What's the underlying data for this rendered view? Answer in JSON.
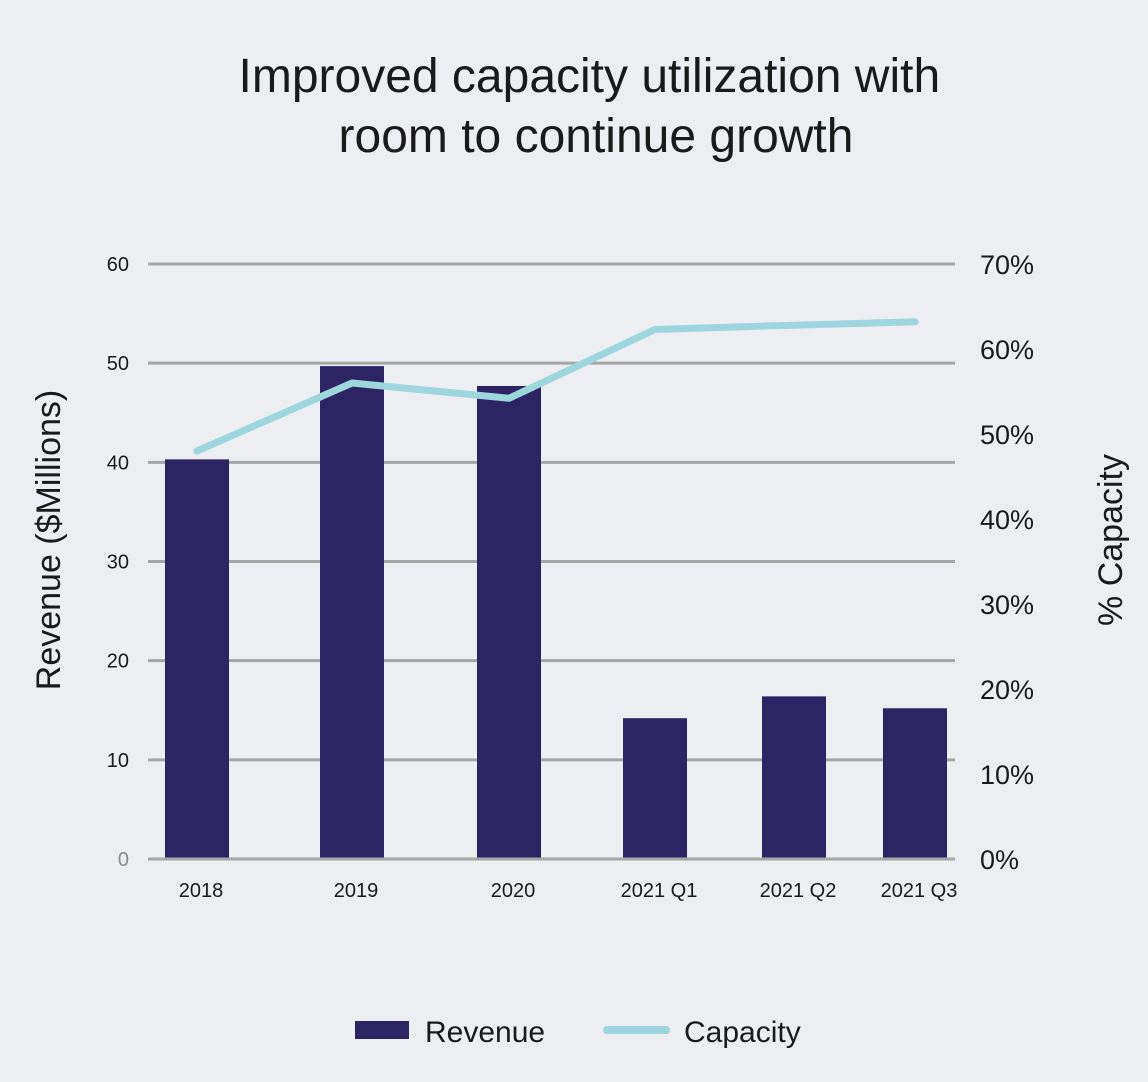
{
  "colors": {
    "background": "#ECEEF2",
    "revenue_bar": "#2D2563",
    "capacity_line": "#9DD6DD",
    "gridline": "#A6A6A6",
    "text": "#1A1A1A"
  },
  "chart_data": {
    "type": "bar",
    "title_lines": [
      "Improved capacity utilization with",
      "room to continue growth"
    ],
    "categories": [
      "2018",
      "2019",
      "2020",
      "2021 Q1",
      "2021 Q2",
      "2021 Q3"
    ],
    "series": [
      {
        "name": "Revenue",
        "type": "bar",
        "axis": "left",
        "values": [
          40.3,
          49.7,
          47.7,
          14.2,
          16.4,
          15.2
        ]
      },
      {
        "name": "Capacity",
        "type": "line",
        "axis": "right",
        "values": [
          48,
          56,
          54.2,
          62.3,
          62.8,
          63.2
        ]
      }
    ],
    "ylabel_left": "Revenue ($Millions)",
    "ylabel_right": "% Capacity",
    "ylim_left": [
      0,
      60
    ],
    "yticks_left": [
      "0",
      "10",
      "20",
      "30",
      "40",
      "50",
      "60"
    ],
    "ylim_right": [
      0,
      70
    ],
    "yticks_right": [
      "0%",
      "10%",
      "20%",
      "30%",
      "40%",
      "50%",
      "60%",
      "70%"
    ],
    "grid": true,
    "legend_position": "bottom-center"
  }
}
